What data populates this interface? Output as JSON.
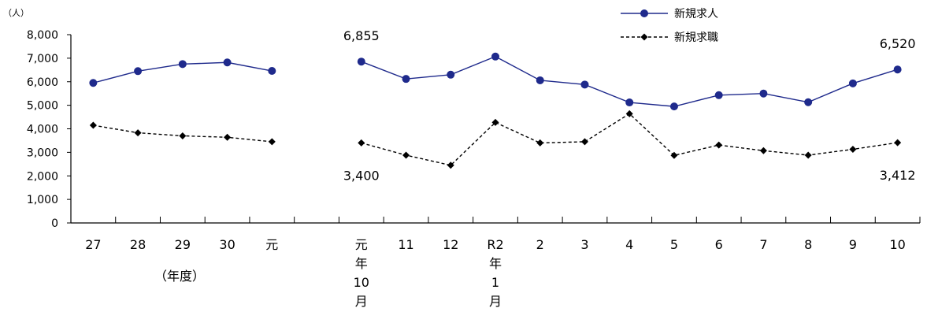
{
  "chart_data": {
    "type": "line",
    "y_unit": "（人）",
    "ylim": [
      0,
      8000
    ],
    "yticks": [
      0,
      1000,
      2000,
      3000,
      4000,
      5000,
      6000,
      7000,
      8000
    ],
    "ytick_labels": [
      "0",
      "1,000",
      "2,000",
      "3,000",
      "4,000",
      "5,000",
      "6,000",
      "7,000",
      "8,000"
    ],
    "annual": {
      "categories": [
        "27",
        "28",
        "29",
        "30",
        "元"
      ],
      "group_label": "（年度）"
    },
    "monthly": {
      "categories": [
        [
          "元",
          "年",
          "10",
          "月"
        ],
        [
          "11"
        ],
        [
          "12"
        ],
        [
          "R2",
          "年",
          "1",
          "月"
        ],
        [
          "2"
        ],
        [
          "3"
        ],
        [
          "4"
        ],
        [
          "5"
        ],
        [
          "6"
        ],
        [
          "7"
        ],
        [
          "8"
        ],
        [
          "9"
        ],
        [
          "10"
        ]
      ]
    },
    "series": [
      {
        "name": "新規求人",
        "color": "#1f2a8c",
        "style": "solid",
        "marker": "circle",
        "annual_values": [
          5950,
          6450,
          6750,
          6820,
          6460
        ],
        "monthly_values": [
          6855,
          6120,
          6300,
          7070,
          6060,
          5880,
          5120,
          4950,
          5430,
          5500,
          5130,
          5930,
          6520
        ]
      },
      {
        "name": "新規求職",
        "color": "#000000",
        "style": "dashed",
        "marker": "diamond",
        "annual_values": [
          4150,
          3830,
          3700,
          3640,
          3450
        ],
        "monthly_values": [
          3400,
          2880,
          2450,
          4270,
          3400,
          3450,
          4640,
          2870,
          3310,
          3070,
          2880,
          3130,
          3412
        ]
      }
    ],
    "annotations": [
      {
        "text": "6,855",
        "series": 0,
        "index": 0
      },
      {
        "text": "3,400",
        "series": 1,
        "index": 0
      },
      {
        "text": "6,520",
        "series": 0,
        "index": 12
      },
      {
        "text": "3,412",
        "series": 1,
        "index": 12
      }
    ],
    "legend_position": "top-right",
    "grid": false
  }
}
